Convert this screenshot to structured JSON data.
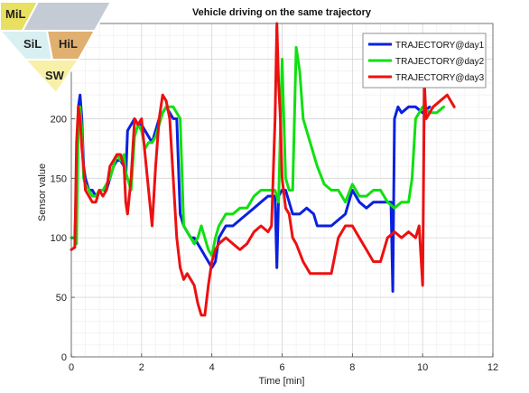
{
  "logo": {
    "top_left": "MiL",
    "middle_left": "SiL",
    "middle_right": "HiL",
    "bottom": "SW",
    "colors": {
      "top_left": "#e8e060",
      "top_right": "#c4cbd4",
      "middle_left": "#d8f0f2",
      "middle_right": "#e0b070",
      "bottom": "#f8f0a8",
      "outline": "#ffffff"
    }
  },
  "chart_data": {
    "type": "line",
    "title": "Vehicle driving on the same trajectory",
    "xlabel": "Time [min]",
    "ylabel": "Sensor value",
    "xlim": [
      0,
      12
    ],
    "ylim": [
      0,
      280
    ],
    "xticks": [
      0,
      2,
      4,
      6,
      8,
      10,
      12
    ],
    "yticks": [
      0,
      50,
      100,
      150,
      200,
      250
    ],
    "grid": true,
    "minor_grid": true,
    "legend_position": "top-right",
    "series": [
      {
        "name": "TRAJECTORY@day1",
        "color": "#0a20e0",
        "x": [
          0,
          0.1,
          0.15,
          0.2,
          0.25,
          0.3,
          0.35,
          0.4,
          0.5,
          0.6,
          0.7,
          0.8,
          0.9,
          1.0,
          1.1,
          1.2,
          1.3,
          1.4,
          1.5,
          1.55,
          1.6,
          1.7,
          1.8,
          1.9,
          2.0,
          2.1,
          2.2,
          2.3,
          2.4,
          2.5,
          2.6,
          2.7,
          2.8,
          2.9,
          3.0,
          3.1,
          3.2,
          3.3,
          3.4,
          3.5,
          3.6,
          3.7,
          3.8,
          3.9,
          4.0,
          4.1,
          4.2,
          4.4,
          4.6,
          4.8,
          5.0,
          5.2,
          5.4,
          5.6,
          5.8,
          5.85,
          5.9,
          6.0,
          6.1,
          6.2,
          6.3,
          6.5,
          6.7,
          6.9,
          7.0,
          7.2,
          7.4,
          7.6,
          7.8,
          7.9,
          8.0,
          8.2,
          8.4,
          8.6,
          8.8,
          9.0,
          9.1,
          9.15,
          9.2,
          9.3,
          9.4,
          9.6,
          9.8,
          10.0,
          10.2
        ],
        "y": [
          100,
          100,
          150,
          210,
          220,
          200,
          160,
          150,
          140,
          140,
          135,
          140,
          140,
          140,
          150,
          160,
          165,
          165,
          160,
          150,
          190,
          195,
          200,
          195,
          195,
          190,
          185,
          180,
          190,
          200,
          205,
          210,
          205,
          200,
          200,
          120,
          110,
          105,
          100,
          100,
          95,
          90,
          85,
          80,
          75,
          80,
          100,
          110,
          110,
          115,
          120,
          125,
          130,
          135,
          135,
          75,
          135,
          140,
          140,
          130,
          120,
          120,
          125,
          120,
          110,
          110,
          110,
          115,
          120,
          130,
          140,
          130,
          125,
          130,
          130,
          130,
          130,
          55,
          200,
          210,
          205,
          210,
          210,
          205,
          210
        ]
      },
      {
        "name": "TRAJECTORY@day2",
        "color": "#10e010",
        "x": [
          0,
          0.1,
          0.15,
          0.2,
          0.25,
          0.3,
          0.35,
          0.4,
          0.5,
          0.6,
          0.7,
          0.8,
          0.9,
          1.0,
          1.1,
          1.2,
          1.3,
          1.4,
          1.5,
          1.55,
          1.6,
          1.7,
          1.8,
          1.9,
          2.0,
          2.1,
          2.2,
          2.3,
          2.4,
          2.5,
          2.6,
          2.7,
          2.8,
          2.9,
          3.0,
          3.1,
          3.2,
          3.3,
          3.4,
          3.5,
          3.6,
          3.7,
          3.8,
          3.9,
          4.0,
          4.1,
          4.2,
          4.4,
          4.6,
          4.8,
          5.0,
          5.2,
          5.4,
          5.6,
          5.8,
          5.9,
          6.0,
          6.05,
          6.1,
          6.2,
          6.3,
          6.4,
          6.5,
          6.6,
          6.8,
          7.0,
          7.2,
          7.4,
          7.6,
          7.8,
          8.0,
          8.2,
          8.4,
          8.6,
          8.8,
          9.0,
          9.2,
          9.4,
          9.6,
          9.7,
          9.8,
          10.0,
          10.2,
          10.4,
          10.6
        ],
        "y": [
          100,
          100,
          95,
          200,
          210,
          190,
          150,
          145,
          140,
          135,
          135,
          140,
          140,
          145,
          150,
          160,
          170,
          165,
          170,
          155,
          150,
          140,
          185,
          195,
          190,
          175,
          180,
          180,
          185,
          195,
          205,
          210,
          210,
          210,
          205,
          200,
          110,
          105,
          100,
          95,
          100,
          110,
          100,
          90,
          85,
          100,
          110,
          120,
          120,
          125,
          125,
          135,
          140,
          140,
          140,
          130,
          250,
          200,
          150,
          140,
          140,
          260,
          240,
          200,
          180,
          160,
          145,
          140,
          140,
          130,
          145,
          135,
          135,
          140,
          140,
          130,
          125,
          130,
          130,
          150,
          200,
          210,
          205,
          205,
          210
        ]
      },
      {
        "name": "TRAJECTORY@day3",
        "color": "#ee1010",
        "x": [
          0,
          0.1,
          0.15,
          0.2,
          0.25,
          0.3,
          0.35,
          0.4,
          0.5,
          0.6,
          0.7,
          0.8,
          0.9,
          1.0,
          1.1,
          1.2,
          1.3,
          1.4,
          1.5,
          1.55,
          1.6,
          1.7,
          1.8,
          1.9,
          2.0,
          2.1,
          2.2,
          2.3,
          2.4,
          2.5,
          2.6,
          2.7,
          2.8,
          2.9,
          3.0,
          3.1,
          3.2,
          3.3,
          3.4,
          3.5,
          3.6,
          3.7,
          3.8,
          3.9,
          4.0,
          4.1,
          4.2,
          4.4,
          4.6,
          4.8,
          5.0,
          5.2,
          5.4,
          5.6,
          5.7,
          5.8,
          5.85,
          5.9,
          5.95,
          6.0,
          6.1,
          6.2,
          6.3,
          6.4,
          6.6,
          6.8,
          7.0,
          7.2,
          7.4,
          7.6,
          7.8,
          8.0,
          8.2,
          8.4,
          8.6,
          8.8,
          9.0,
          9.2,
          9.4,
          9.6,
          9.8,
          9.9,
          10.0,
          10.05,
          10.1,
          10.3,
          10.5,
          10.7,
          10.9
        ],
        "y": [
          90,
          92,
          180,
          210,
          200,
          175,
          160,
          140,
          135,
          130,
          130,
          140,
          135,
          140,
          160,
          165,
          170,
          170,
          160,
          130,
          120,
          150,
          200,
          195,
          200,
          170,
          140,
          110,
          160,
          200,
          220,
          215,
          200,
          150,
          100,
          75,
          65,
          70,
          65,
          60,
          45,
          35,
          35,
          60,
          80,
          90,
          95,
          100,
          95,
          90,
          95,
          105,
          110,
          105,
          110,
          200,
          280,
          230,
          200,
          150,
          125,
          120,
          100,
          95,
          80,
          70,
          70,
          70,
          70,
          100,
          110,
          110,
          100,
          90,
          80,
          80,
          100,
          105,
          100,
          105,
          100,
          110,
          60,
          230,
          200,
          210,
          215,
          220,
          210
        ]
      }
    ]
  }
}
